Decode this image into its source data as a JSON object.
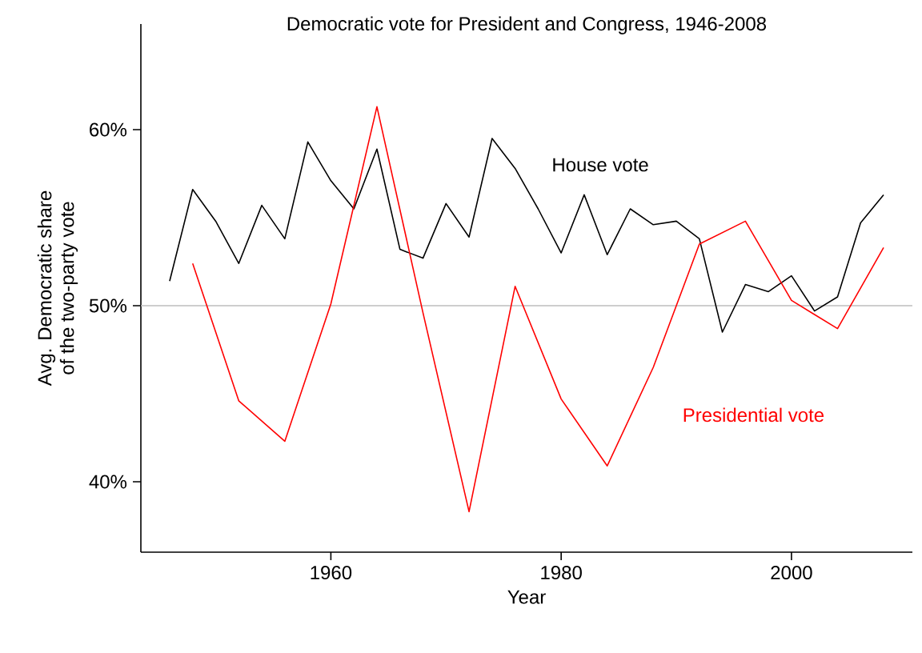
{
  "chart_data": {
    "type": "line",
    "title": "Democratic vote for President and Congress, 1946-2008",
    "xlabel": "Year",
    "ylabel": "Avg. Democratic share\nof the two-party vote",
    "series": [
      {
        "name": "House vote",
        "color": "#000000",
        "x": [
          1946,
          1948,
          1950,
          1952,
          1954,
          1956,
          1958,
          1960,
          1962,
          1964,
          1966,
          1968,
          1970,
          1972,
          1974,
          1976,
          1978,
          1980,
          1982,
          1984,
          1986,
          1988,
          1990,
          1992,
          1994,
          1996,
          1998,
          2000,
          2002,
          2004,
          2006,
          2008
        ],
        "values": [
          51.4,
          56.6,
          54.8,
          52.4,
          55.7,
          53.8,
          59.3,
          57.1,
          55.5,
          58.9,
          53.2,
          52.7,
          55.8,
          53.9,
          59.5,
          57.8,
          55.5,
          53.0,
          56.3,
          52.9,
          55.5,
          54.6,
          54.8,
          53.8,
          48.5,
          51.2,
          50.8,
          51.7,
          49.7,
          50.5,
          54.7,
          56.3
        ]
      },
      {
        "name": "Presidential vote",
        "color": "#ff0000",
        "x": [
          1948,
          1952,
          1956,
          1960,
          1964,
          1968,
          1972,
          1976,
          1980,
          1984,
          1988,
          1992,
          1996,
          2000,
          2004,
          2008
        ],
        "values": [
          52.4,
          44.6,
          42.3,
          50.1,
          61.3,
          49.6,
          38.3,
          51.1,
          44.7,
          40.9,
          46.5,
          53.5,
          54.8,
          50.3,
          48.7,
          53.3
        ]
      }
    ],
    "xlim": [
      1943.5,
      2010.5
    ],
    "ylim": [
      36,
      66
    ],
    "xticks": [
      1960,
      1980,
      2000
    ],
    "yticks": [
      {
        "value": 40,
        "label": "40%"
      },
      {
        "value": 50,
        "label": "50%"
      },
      {
        "value": 60,
        "label": "60%"
      }
    ],
    "ref_lines": [
      {
        "axis": "y",
        "value": 50,
        "color": "#bebebe"
      }
    ],
    "grid": false,
    "legend": false,
    "marker": "none",
    "line_style": "solid"
  }
}
